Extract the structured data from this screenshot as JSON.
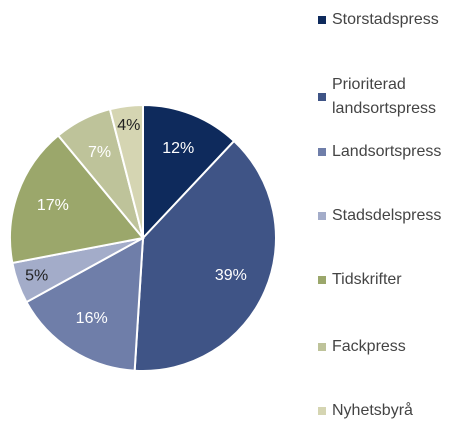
{
  "chart_data": {
    "type": "pie",
    "categories": [
      "Storstadspress",
      "Prioriterad landsortspress",
      "Landsortspress",
      "Stadsdelspress",
      "Tidskrifter",
      "Fackpress",
      "Nyhetsbyrå"
    ],
    "values": [
      12,
      39,
      16,
      5,
      17,
      7,
      4
    ],
    "value_labels": [
      "12%",
      "39%",
      "16%",
      "5%",
      "17%",
      "7%",
      "4%"
    ],
    "colors": [
      "#0e2a5c",
      "#3f5486",
      "#6f7ea9",
      "#a3acc9",
      "#9ba76b",
      "#bec39a",
      "#d5d5b2"
    ]
  }
}
